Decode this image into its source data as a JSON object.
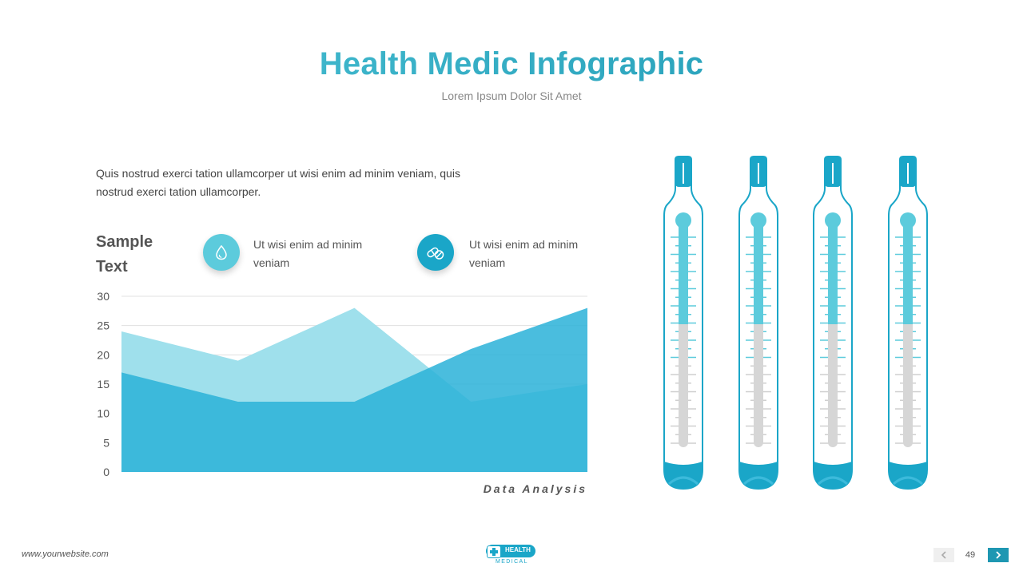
{
  "header": {
    "title": "Health Medic Infographic",
    "subtitle": "Lorem Ipsum Dolor Sit Amet"
  },
  "intro_text": "Quis nostrud exerci tation ullamcorper ut wisi enim ad minim veniam, quis nostrud exerci tation ullamcorper.",
  "sample_title_line1": "Sample",
  "sample_title_line2": "Text",
  "legend": [
    {
      "icon": "water-drop-icon",
      "text": "Ut wisi enim ad minim veniam",
      "color": "#5ccbdc"
    },
    {
      "icon": "pills-icon",
      "text": "Ut wisi enim ad minim veniam",
      "color": "#1aa6c8"
    }
  ],
  "chart_data": {
    "type": "area",
    "title": "",
    "xlabel": "Data Analysis",
    "ylabel": "",
    "ylim": [
      0,
      30
    ],
    "yticks": [
      0,
      5,
      10,
      15,
      20,
      25,
      30
    ],
    "x": [
      1,
      2,
      3,
      4,
      5
    ],
    "grid": true,
    "series": [
      {
        "values": [
          24,
          19,
          28,
          12,
          15
        ],
        "color": "#9fe0ec"
      },
      {
        "values": [
          17,
          12,
          12,
          21,
          28
        ],
        "color": "#2ab2d8"
      }
    ]
  },
  "thermometers": [
    {
      "level": 0.55
    },
    {
      "level": 0.55
    },
    {
      "level": 0.55
    },
    {
      "level": 0.55
    }
  ],
  "colors": {
    "accent": "#1aa6c8",
    "accent_light": "#5ccbdc",
    "mercury_empty": "#d6d6d6"
  },
  "footer": {
    "website": "www.yourwebsite.com",
    "logo_word1": "HEALTH",
    "logo_word2": "MEDICAL",
    "page_number": "49"
  }
}
